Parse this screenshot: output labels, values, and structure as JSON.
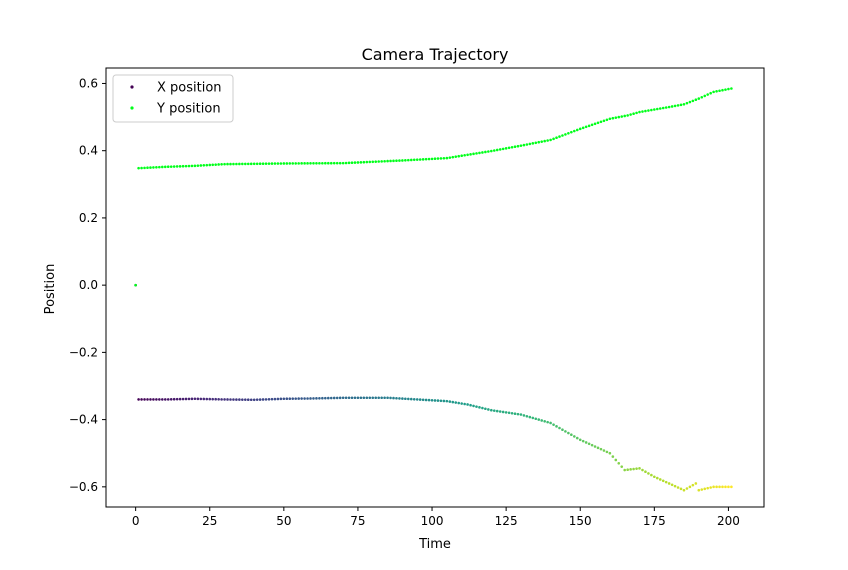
{
  "chart_data": {
    "type": "scatter",
    "title": "Camera Trajectory",
    "xlabel": "Time",
    "ylabel": "Position",
    "xlim": [
      -10,
      212
    ],
    "ylim": [
      -0.66,
      0.646
    ],
    "xticks": [
      0,
      25,
      50,
      75,
      100,
      125,
      150,
      175,
      200
    ],
    "xtick_labels": [
      "0",
      "25",
      "50",
      "75",
      "100",
      "125",
      "150",
      "175",
      "200"
    ],
    "yticks": [
      -0.6,
      -0.4,
      -0.2,
      0.0,
      0.2,
      0.4,
      0.6
    ],
    "ytick_labels": [
      "−0.6",
      "−0.4",
      "−0.2",
      "0.0",
      "0.2",
      "0.4",
      "0.6"
    ],
    "grid": false,
    "legend_position": "top-left",
    "x": {
      "start": 0,
      "end": 201,
      "step": 1
    },
    "series": [
      {
        "name": "X position",
        "legend_color": "#440154",
        "colormap": "viridis",
        "keyframes": [
          [
            0,
            0.0
          ],
          [
            1,
            -0.34
          ],
          [
            10,
            -0.34
          ],
          [
            20,
            -0.338
          ],
          [
            30,
            -0.34
          ],
          [
            40,
            -0.341
          ],
          [
            50,
            -0.338
          ],
          [
            60,
            -0.337
          ],
          [
            70,
            -0.335
          ],
          [
            85,
            -0.335
          ],
          [
            95,
            -0.34
          ],
          [
            105,
            -0.345
          ],
          [
            112,
            -0.355
          ],
          [
            120,
            -0.372
          ],
          [
            130,
            -0.385
          ],
          [
            140,
            -0.41
          ],
          [
            150,
            -0.46
          ],
          [
            160,
            -0.5
          ],
          [
            165,
            -0.55
          ],
          [
            170,
            -0.545
          ],
          [
            175,
            -0.57
          ],
          [
            180,
            -0.59
          ],
          [
            185,
            -0.61
          ],
          [
            189,
            -0.59
          ],
          [
            190,
            -0.61
          ],
          [
            195,
            -0.6
          ],
          [
            201,
            -0.6
          ]
        ]
      },
      {
        "name": "Y position",
        "color": "#00ff1a",
        "keyframes": [
          [
            0,
            0.0
          ],
          [
            1,
            0.348
          ],
          [
            10,
            0.352
          ],
          [
            20,
            0.355
          ],
          [
            30,
            0.36
          ],
          [
            50,
            0.362
          ],
          [
            70,
            0.363
          ],
          [
            90,
            0.371
          ],
          [
            105,
            0.378
          ],
          [
            120,
            0.399
          ],
          [
            130,
            0.415
          ],
          [
            140,
            0.432
          ],
          [
            150,
            0.465
          ],
          [
            160,
            0.495
          ],
          [
            166,
            0.505
          ],
          [
            170,
            0.515
          ],
          [
            180,
            0.53
          ],
          [
            185,
            0.538
          ],
          [
            190,
            0.555
          ],
          [
            195,
            0.575
          ],
          [
            201,
            0.585
          ]
        ]
      }
    ]
  }
}
